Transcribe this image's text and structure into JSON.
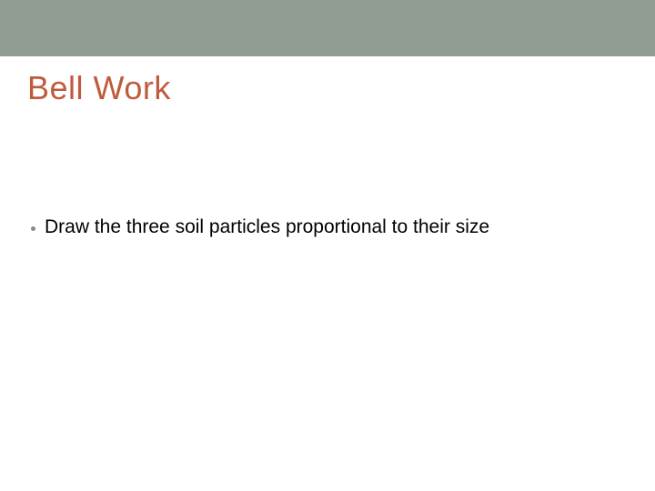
{
  "slide": {
    "title": "Bell Work",
    "title_color": "#c05a3d",
    "title_fontsize": 36,
    "top_band_color": "#8f9d93",
    "background_color": "#ffffff",
    "bullets": [
      {
        "text": "Draw the three soil particles proportional to their size"
      }
    ],
    "bullet_color": "#000000",
    "bullet_dot_color": "#8a8a8a",
    "bullet_fontsize": 21
  }
}
